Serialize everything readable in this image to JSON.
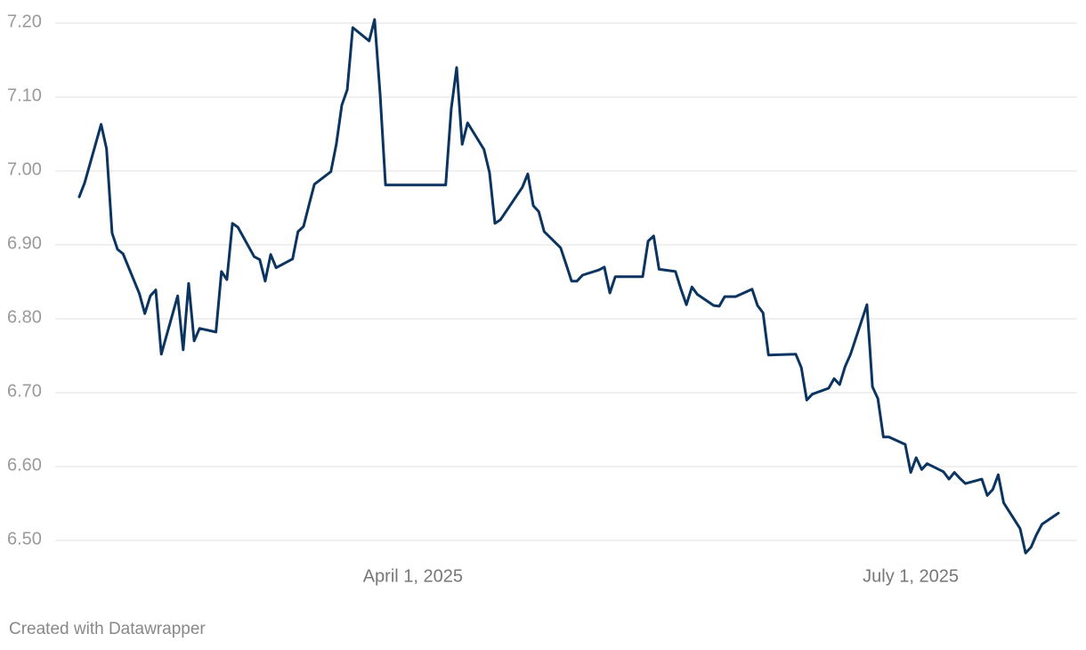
{
  "chart_data": {
    "type": "line",
    "x": [
      "2025-01-30",
      "2025-01-31",
      "2025-02-03",
      "2025-02-04",
      "2025-02-05",
      "2025-02-06",
      "2025-02-07",
      "2025-02-10",
      "2025-02-11",
      "2025-02-12",
      "2025-02-13",
      "2025-02-14",
      "2025-02-17",
      "2025-02-18",
      "2025-02-19",
      "2025-02-20",
      "2025-02-21",
      "2025-02-24",
      "2025-02-25",
      "2025-02-26",
      "2025-02-27",
      "2025-02-28",
      "2025-03-03",
      "2025-03-04",
      "2025-03-05",
      "2025-03-06",
      "2025-03-07",
      "2025-03-10",
      "2025-03-11",
      "2025-03-12",
      "2025-03-13",
      "2025-03-14",
      "2025-03-17",
      "2025-03-18",
      "2025-03-19",
      "2025-03-20",
      "2025-03-21",
      "2025-03-24",
      "2025-03-25",
      "2025-03-26",
      "2025-03-27",
      "2025-04-07",
      "2025-04-08",
      "2025-04-09",
      "2025-04-10",
      "2025-04-11",
      "2025-04-14",
      "2025-04-15",
      "2025-04-16",
      "2025-04-17",
      "2025-04-21",
      "2025-04-22",
      "2025-04-23",
      "2025-04-24",
      "2025-04-25",
      "2025-04-28",
      "2025-04-29",
      "2025-04-30",
      "2025-05-01",
      "2025-05-02",
      "2025-05-05",
      "2025-05-06",
      "2025-05-07",
      "2025-05-08",
      "2025-05-13",
      "2025-05-14",
      "2025-05-15",
      "2025-05-16",
      "2025-05-19",
      "2025-05-20",
      "2025-05-21",
      "2025-05-22",
      "2025-05-23",
      "2025-05-26",
      "2025-05-27",
      "2025-05-28",
      "2025-05-30",
      "2025-06-02",
      "2025-06-03",
      "2025-06-04",
      "2025-06-05",
      "2025-06-10",
      "2025-06-11",
      "2025-06-12",
      "2025-06-13",
      "2025-06-16",
      "2025-06-17",
      "2025-06-18",
      "2025-06-19",
      "2025-06-20",
      "2025-06-23",
      "2025-06-24",
      "2025-06-25",
      "2025-06-26",
      "2025-06-27",
      "2025-06-30",
      "2025-07-01",
      "2025-07-02",
      "2025-07-03",
      "2025-07-04",
      "2025-07-07",
      "2025-07-08",
      "2025-07-09",
      "2025-07-10",
      "2025-07-11",
      "2025-07-14",
      "2025-07-15",
      "2025-07-16",
      "2025-07-17",
      "2025-07-18",
      "2025-07-21",
      "2025-07-22",
      "2025-07-23",
      "2025-07-24",
      "2025-07-25",
      "2025-07-28"
    ],
    "series": [
      {
        "color": "#0b3560",
        "values": [
          6.965,
          6.984,
          7.063,
          7.03,
          6.916,
          6.894,
          6.888,
          6.834,
          6.807,
          6.831,
          6.839,
          6.752,
          6.831,
          6.758,
          6.848,
          6.77,
          6.787,
          6.782,
          6.864,
          6.853,
          6.929,
          6.924,
          6.884,
          6.88,
          6.851,
          6.887,
          6.869,
          6.881,
          6.918,
          6.925,
          6.954,
          6.982,
          6.999,
          7.036,
          7.089,
          7.11,
          7.194,
          7.176,
          7.205,
          7.104,
          6.981,
          6.981,
          7.084,
          7.14,
          7.036,
          7.065,
          7.029,
          6.998,
          6.929,
          6.934,
          6.978,
          6.996,
          6.953,
          6.945,
          6.918,
          6.896,
          6.874,
          6.851,
          6.851,
          6.859,
          6.866,
          6.87,
          6.835,
          6.857,
          6.857,
          6.905,
          6.912,
          6.867,
          6.864,
          6.84,
          6.819,
          6.843,
          6.833,
          6.818,
          6.817,
          6.83,
          6.83,
          6.84,
          6.818,
          6.808,
          6.751,
          6.752,
          6.734,
          6.69,
          6.698,
          6.706,
          6.719,
          6.711,
          6.735,
          6.752,
          6.819,
          6.708,
          6.692,
          6.64,
          6.64,
          6.63,
          6.592,
          6.612,
          6.596,
          6.604,
          6.593,
          6.583,
          6.592,
          6.584,
          6.577,
          6.583,
          6.561,
          6.569,
          6.589,
          6.551,
          6.516,
          6.483,
          6.491,
          6.508,
          6.522,
          6.537
        ]
      }
    ],
    "xlim": [
      "2025-01-30",
      "2025-07-28"
    ],
    "xticks": [
      {
        "value": "2025-04-01",
        "label": "April 1, 2025"
      },
      {
        "value": "2025-07-01",
        "label": "July 1, 2025"
      }
    ],
    "ylim": [
      6.5,
      7.2
    ],
    "yticks": [
      {
        "value": 6.5,
        "label": "6.50"
      },
      {
        "value": 6.6,
        "label": "6.60"
      },
      {
        "value": 6.7,
        "label": "6.70"
      },
      {
        "value": 6.8,
        "label": "6.80"
      },
      {
        "value": 6.9,
        "label": "6.90"
      },
      {
        "value": 7.0,
        "label": "7.00"
      },
      {
        "value": 7.1,
        "label": "7.10"
      },
      {
        "value": 7.2,
        "label": "7.20"
      }
    ],
    "grid": true,
    "footer": "Created with Datawrapper"
  }
}
